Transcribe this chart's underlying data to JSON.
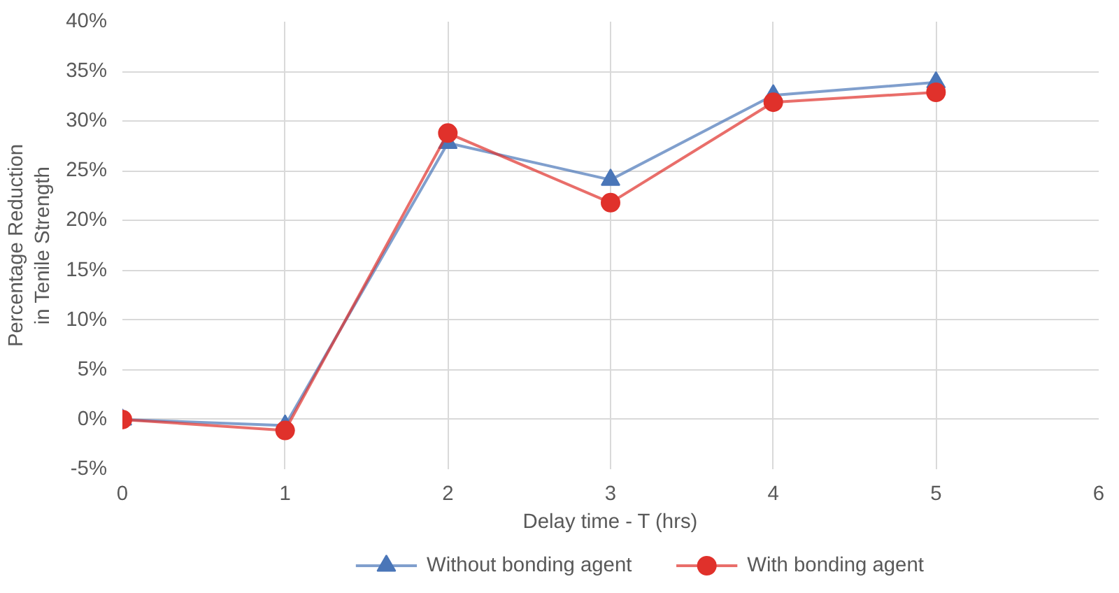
{
  "chart_data": {
    "type": "line",
    "xlabel": "Delay time - T (hrs)",
    "ylabel": "Percentage Reduction in Tenile Strength",
    "x": [
      0,
      1,
      2,
      3,
      4,
      5
    ],
    "series": [
      {
        "name": "Without bonding agent",
        "color": "#4a76b8",
        "values": [
          0,
          -0.6,
          27.8,
          24.1,
          32.6,
          33.9
        ],
        "marker": "triangle"
      },
      {
        "name": "With bonding agent",
        "color": "#e0312b",
        "values": [
          0,
          -1.1,
          28.8,
          21.8,
          31.9,
          32.9
        ],
        "marker": "circle"
      }
    ],
    "xlim": [
      0,
      6
    ],
    "xticks": [
      0,
      1,
      2,
      3,
      4,
      5,
      6
    ],
    "ylim": [
      -5,
      40
    ],
    "yticks": [
      {
        "value": -5,
        "label": "-5%"
      },
      {
        "value": 0,
        "label": "0%"
      },
      {
        "value": 5,
        "label": "5%"
      },
      {
        "value": 10,
        "label": "10%"
      },
      {
        "value": 15,
        "label": "15%"
      },
      {
        "value": 20,
        "label": "20%"
      },
      {
        "value": 25,
        "label": "25%"
      },
      {
        "value": 30,
        "label": "30%"
      },
      {
        "value": 35,
        "label": "35%"
      },
      {
        "value": 40,
        "label": "40%"
      }
    ],
    "grid": true,
    "legend": "bottom",
    "line_style": "solid"
  }
}
